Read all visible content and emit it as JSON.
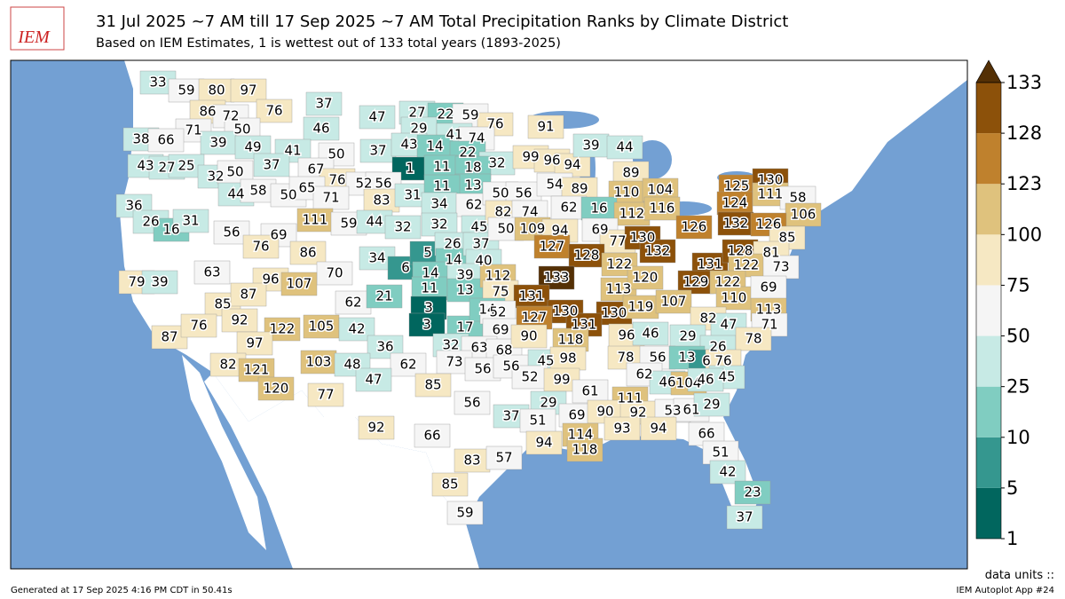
{
  "logo_text": "IEM",
  "title": "31 Jul 2025 ~7 AM till 17 Sep 2025 ~7 AM Total Precipitation Ranks by Climate District",
  "subtitle": "Based on IEM Estimates, 1 is wettest out of 133 total years (1893-2025)",
  "legend": {
    "ticks": [
      1,
      5,
      10,
      25,
      50,
      75,
      100,
      123,
      128,
      133
    ],
    "colors": [
      "#01665e",
      "#35978f",
      "#80cdc1",
      "#c7eae5",
      "#f5f5f5",
      "#f6e8c3",
      "#dfc27d",
      "#bf812d",
      "#8c510a"
    ],
    "extend_color": "#543005",
    "units_label": "data units ::"
  },
  "districts": {
    "values": [
      33,
      59,
      80,
      97,
      76,
      37,
      47,
      27,
      22,
      59,
      76,
      91,
      86,
      72,
      71,
      50,
      46,
      29,
      41,
      74,
      38,
      66,
      39,
      49,
      41,
      50,
      37,
      43,
      14,
      22,
      32,
      99,
      96,
      94,
      39,
      44,
      43,
      27,
      25,
      37,
      67,
      1,
      11,
      18,
      32,
      50,
      76,
      52,
      56,
      13,
      89,
      44,
      58,
      50,
      65,
      71,
      83,
      31,
      11,
      34,
      62,
      50,
      56,
      54,
      89,
      110,
      104,
      36,
      26,
      16,
      31,
      56,
      111,
      59,
      44,
      32,
      32,
      45,
      82,
      74,
      62,
      16,
      112,
      116,
      125,
      124,
      130,
      111,
      58,
      106,
      69,
      76,
      86,
      70,
      34,
      6,
      5,
      26,
      14,
      37,
      40,
      50,
      109,
      94,
      69,
      77,
      130,
      126,
      132,
      126,
      85,
      127,
      128,
      122,
      132,
      131,
      128,
      81,
      122,
      73,
      63,
      96,
      107,
      62,
      21,
      14,
      11,
      39,
      13,
      112,
      75,
      133,
      113,
      120,
      129,
      122,
      110,
      69,
      79,
      39,
      85,
      87,
      92,
      131,
      130,
      130,
      119,
      107,
      113,
      122,
      105,
      42,
      3,
      3,
      17,
      14,
      52,
      69,
      127,
      131,
      82,
      47,
      71,
      87,
      76,
      97,
      36,
      32,
      63,
      68,
      90,
      118,
      96,
      46,
      29,
      26,
      78,
      82,
      121,
      103,
      48,
      62,
      73,
      56,
      56,
      45,
      98,
      78,
      56,
      13,
      6,
      76,
      45,
      120,
      77,
      47,
      85,
      52,
      99,
      62,
      46,
      104,
      46,
      61,
      111,
      56,
      29,
      92,
      66,
      37,
      51,
      69,
      90,
      92,
      53,
      61,
      29,
      93,
      94,
      114,
      94,
      118,
      66,
      83,
      57,
      51,
      85,
      42,
      59,
      23,
      37
    ]
  },
  "footer": {
    "left": "Generated at 17 Sep 2025 4:16 PM CDT in 50.41s",
    "right": "IEM Autoplot App #24"
  }
}
